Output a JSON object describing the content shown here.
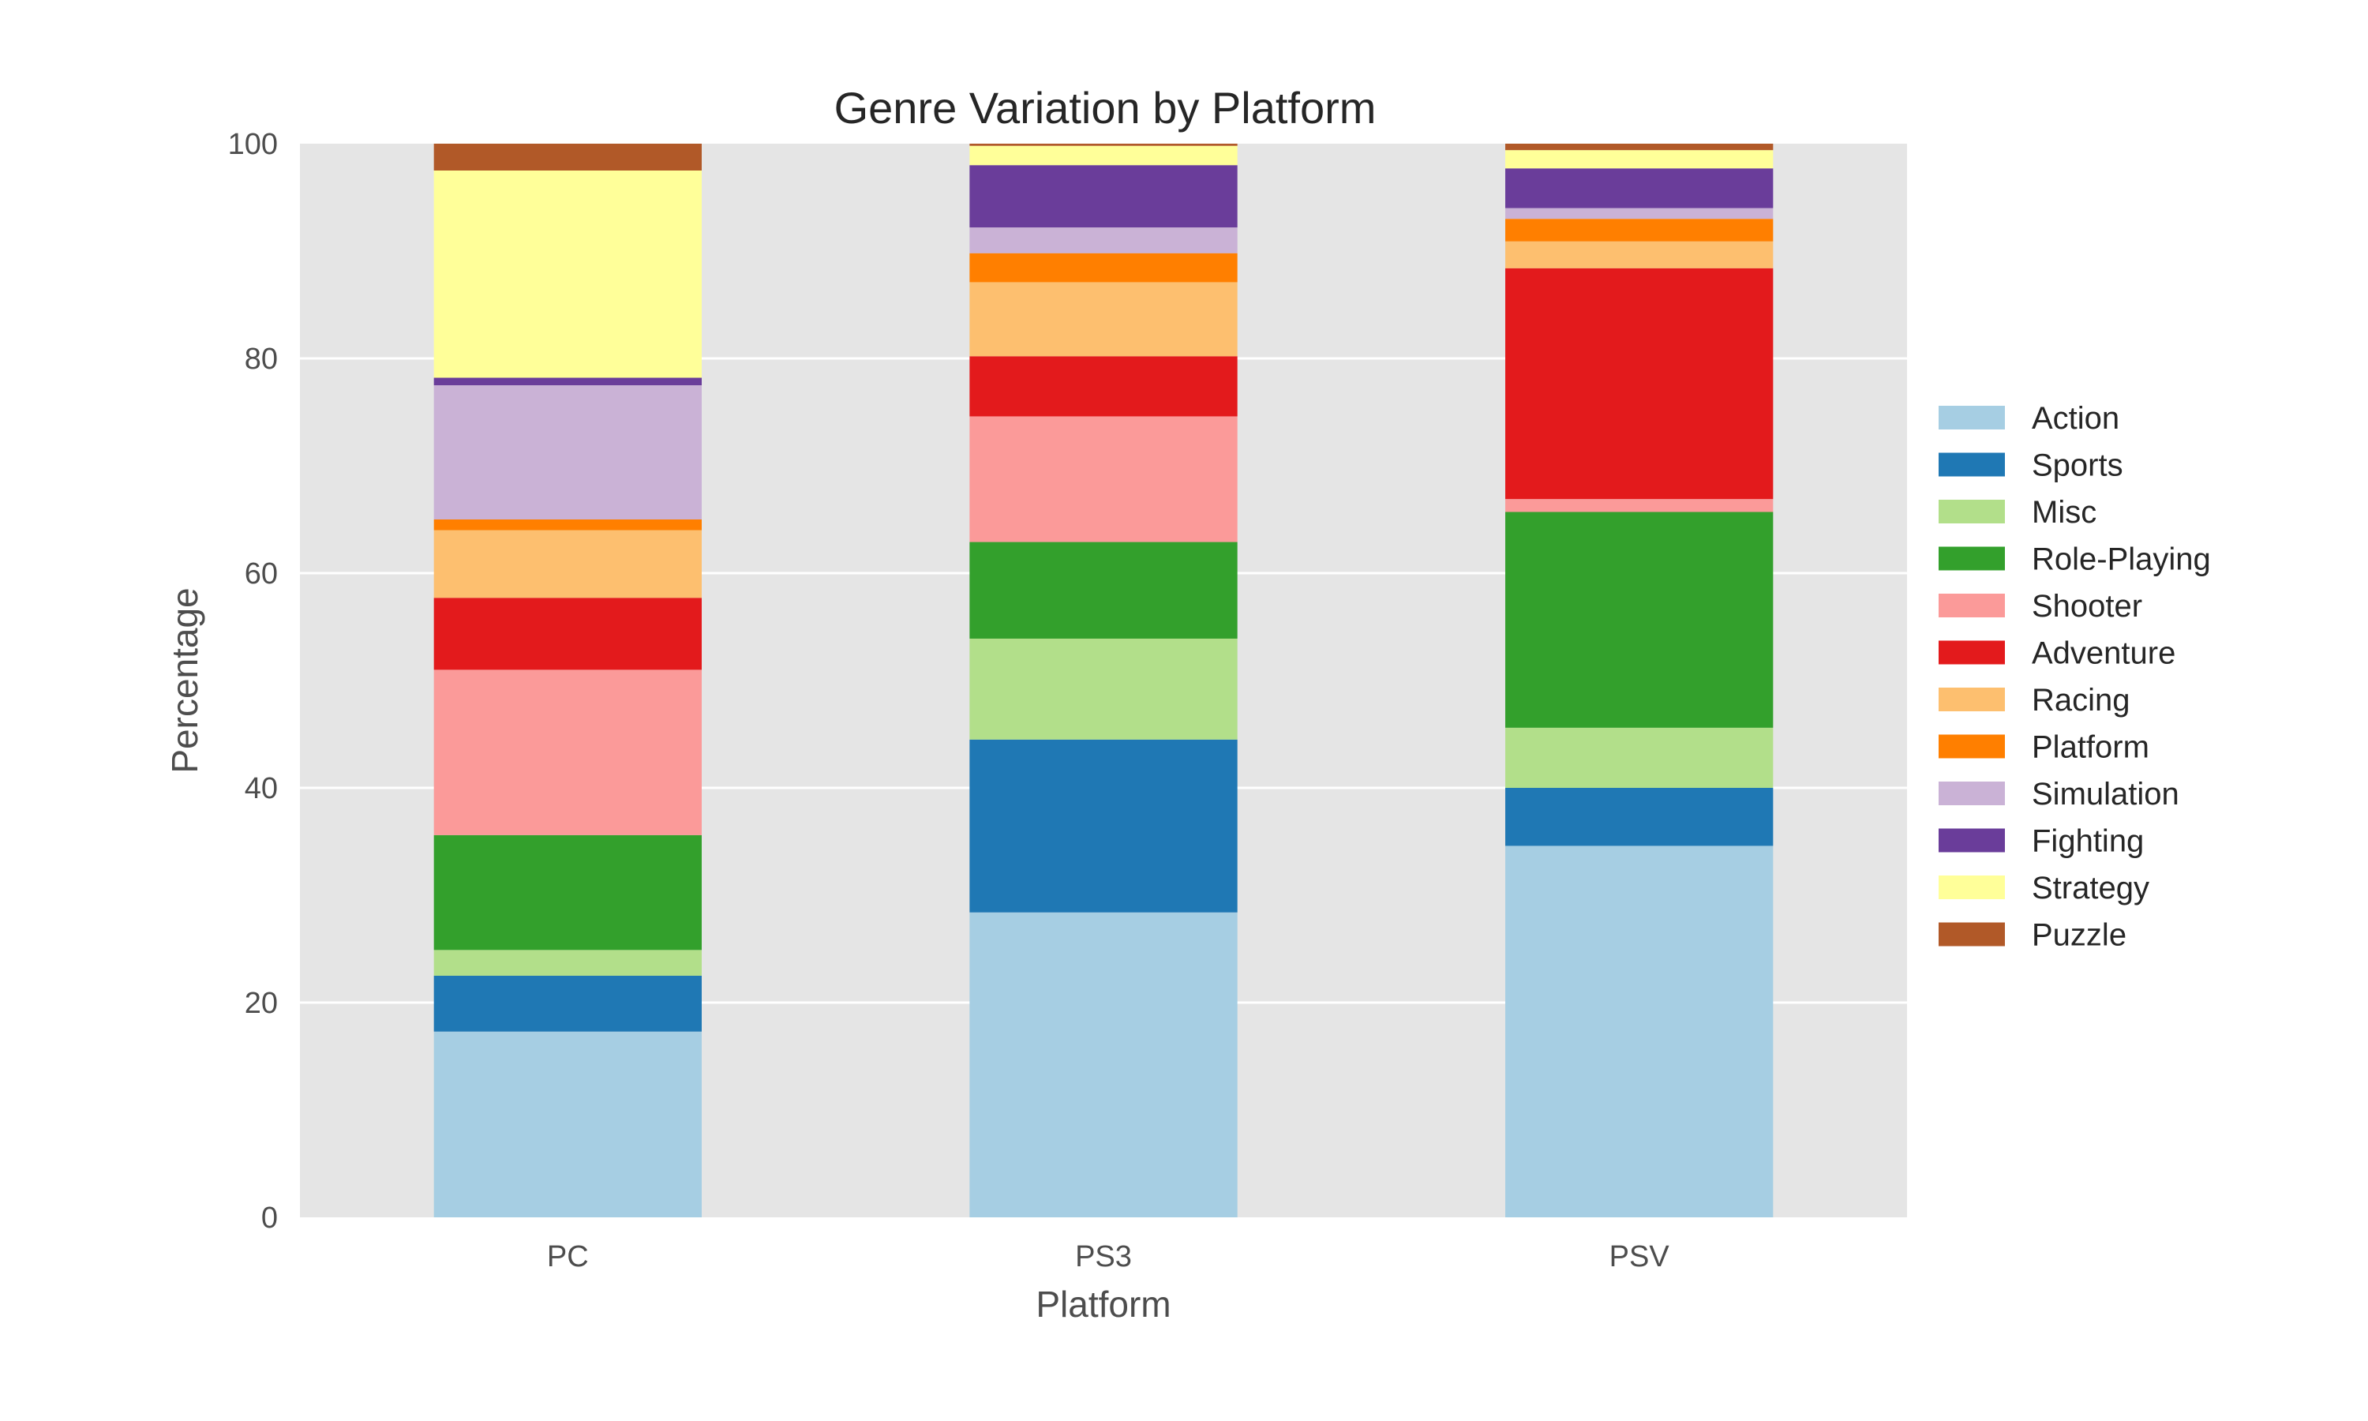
{
  "chart_data": {
    "type": "bar",
    "stacked": true,
    "title": "Genre Variation by Platform",
    "xlabel": "Platform",
    "ylabel": "Percentage",
    "ylim": [
      0,
      100
    ],
    "yticks": [
      "0",
      "20",
      "40",
      "60",
      "80",
      "100"
    ],
    "categories": [
      "PC",
      "PS3",
      "PSV"
    ],
    "grid": true,
    "background": "#e5e5e5",
    "legend_position": "right",
    "series": [
      {
        "name": "Action",
        "color": "#a6cee3",
        "values": [
          17.3,
          28.4,
          34.6
        ]
      },
      {
        "name": "Sports",
        "color": "#1f78b4",
        "values": [
          5.2,
          16.1,
          5.4
        ]
      },
      {
        "name": "Misc",
        "color": "#b2df8a",
        "values": [
          2.4,
          9.4,
          5.6
        ]
      },
      {
        "name": "Role-Playing",
        "color": "#33a02c",
        "values": [
          10.7,
          9.0,
          20.1
        ]
      },
      {
        "name": "Shooter",
        "color": "#fb9a99",
        "values": [
          15.4,
          11.7,
          1.2
        ]
      },
      {
        "name": "Adventure",
        "color": "#e31a1c",
        "values": [
          6.7,
          5.6,
          21.5
        ]
      },
      {
        "name": "Racing",
        "color": "#fdbf6f",
        "values": [
          6.3,
          6.9,
          2.5
        ]
      },
      {
        "name": "Platform",
        "color": "#ff7f00",
        "values": [
          1.0,
          2.7,
          2.1
        ]
      },
      {
        "name": "Simulation",
        "color": "#cab2d6",
        "values": [
          12.5,
          2.4,
          1.0
        ]
      },
      {
        "name": "Fighting",
        "color": "#6a3d9a",
        "values": [
          0.7,
          5.8,
          3.7
        ]
      },
      {
        "name": "Strategy",
        "color": "#ffff99",
        "values": [
          19.3,
          1.8,
          1.7
        ]
      },
      {
        "name": "Puzzle",
        "color": "#b15928",
        "values": [
          2.5,
          0.2,
          0.6
        ]
      }
    ]
  }
}
